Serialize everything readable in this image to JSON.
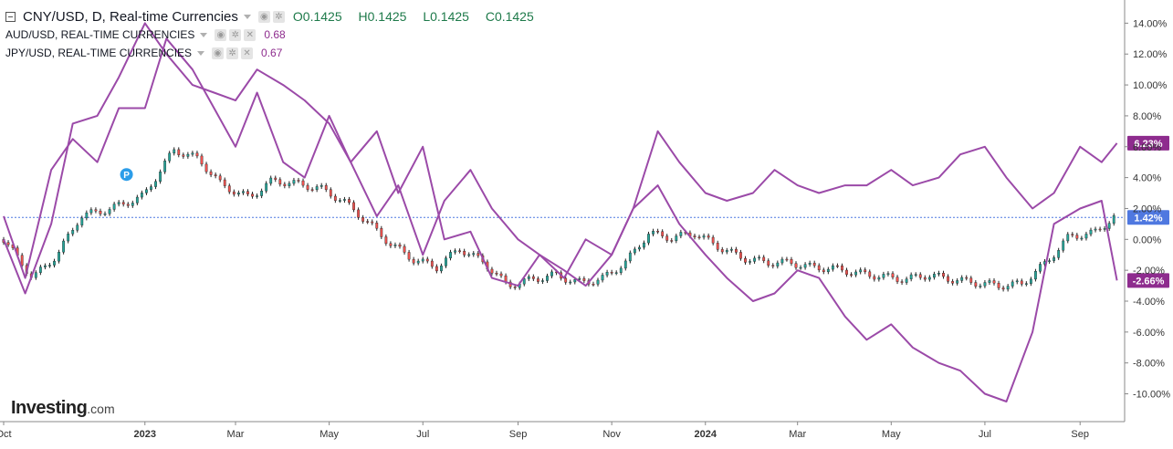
{
  "legend": {
    "main_title": "CNY/USD, D, Real-time Currencies",
    "open": "O0.1425",
    "high": "H0.1425",
    "low": "L0.1425",
    "close": "C0.1425",
    "aud_label": "AUD/USD, REAL-TIME CURRENCIES",
    "aud_value": "0.68",
    "jpy_label": "JPY/USD, REAL-TIME CURRENCIES",
    "jpy_value": "0.67"
  },
  "logo": {
    "brand": "Investing",
    "suffix": ".com"
  },
  "colors": {
    "up": "#26a69a",
    "down": "#ef5350",
    "compare": "#9b4aa8",
    "last_cny": "#4f78e0",
    "last_compare": "#8e2c8e",
    "grid": "#f0f3fa"
  },
  "chart_data": {
    "type": "line",
    "title": "CNY/USD, D, Real-time Currencies",
    "y_unit": "percent change",
    "ylim": [
      -11.8,
      15.5
    ],
    "y_ticks": [
      14,
      12,
      10,
      8,
      6,
      4,
      2,
      0,
      -2,
      -4,
      -6,
      -8,
      -10
    ],
    "y_tick_labels": [
      "14.00%",
      "12.00%",
      "10.00%",
      "8.00%",
      "6.00%",
      "4.00%",
      "2.00%",
      "0.00%",
      "-2.00%",
      "-4.00%",
      "-6.00%",
      "-8.00%",
      "-10.00%"
    ],
    "x_range": [
      "2022-10-01",
      "2024-09-30"
    ],
    "x_ticks": [
      {
        "date": "2022-10-01",
        "label": "Oct",
        "bold": false
      },
      {
        "date": "2023-01-01",
        "label": "2023",
        "bold": true
      },
      {
        "date": "2023-03-01",
        "label": "Mar",
        "bold": false
      },
      {
        "date": "2023-05-01",
        "label": "May",
        "bold": false
      },
      {
        "date": "2023-07-01",
        "label": "Jul",
        "bold": false
      },
      {
        "date": "2023-09-01",
        "label": "Sep",
        "bold": false
      },
      {
        "date": "2023-11-01",
        "label": "Nov",
        "bold": false
      },
      {
        "date": "2024-01-01",
        "label": "2024",
        "bold": true
      },
      {
        "date": "2024-03-01",
        "label": "Mar",
        "bold": false
      },
      {
        "date": "2024-05-01",
        "label": "May",
        "bold": false
      },
      {
        "date": "2024-07-01",
        "label": "Jul",
        "bold": false
      },
      {
        "date": "2024-09-01",
        "label": "Sep",
        "bold": false
      }
    ],
    "reference_line": {
      "value": 1.42,
      "label": "1.42%"
    },
    "last_value_badges": [
      {
        "series": "AUD/USD",
        "value": 6.23,
        "label": "6.23%"
      },
      {
        "series": "JPY/USD",
        "value": -2.66,
        "label": "-2.66%"
      }
    ],
    "series": [
      {
        "name": "CNY/USD",
        "style": "candlestick",
        "x": [
          "2022-10-01",
          "2022-10-20",
          "2022-11-05",
          "2022-11-20",
          "2022-12-10",
          "2022-12-31",
          "2023-01-20",
          "2023-02-05",
          "2023-02-20",
          "2023-03-10",
          "2023-03-25",
          "2023-04-10",
          "2023-04-25",
          "2023-05-10",
          "2023-05-25",
          "2023-06-10",
          "2023-06-25",
          "2023-07-10",
          "2023-07-25",
          "2023-08-10",
          "2023-08-25",
          "2023-09-10",
          "2023-09-25",
          "2023-10-10",
          "2023-10-25",
          "2023-11-10",
          "2023-11-25",
          "2023-12-10",
          "2023-12-25",
          "2024-01-10",
          "2024-01-25",
          "2024-02-10",
          "2024-02-25",
          "2024-03-10",
          "2024-03-25",
          "2024-04-10",
          "2024-04-25",
          "2024-05-10",
          "2024-05-25",
          "2024-06-10",
          "2024-06-25",
          "2024-07-10",
          "2024-07-25",
          "2024-08-10",
          "2024-08-25",
          "2024-09-10",
          "2024-09-23"
        ],
        "values": [
          0,
          -2.5,
          -1,
          1.5,
          2,
          2.8,
          5.8,
          5.2,
          3.5,
          2.7,
          3.8,
          3.6,
          3.3,
          2.5,
          1.2,
          -0.3,
          -1.3,
          -1.8,
          -0.6,
          -1.5,
          -3,
          -2.6,
          -2.3,
          -2.8,
          -2.6,
          -1.5,
          0.4,
          0.1,
          0.4,
          -0.5,
          -1.2,
          -1.5,
          -1.5,
          -1.8,
          -1.9,
          -2.2,
          -2.4,
          -2.6,
          -2.3,
          -2.6,
          -2.8,
          -3,
          -2.9,
          -1.5,
          0.2,
          0.4,
          1.42
        ]
      },
      {
        "name": "AUD/USD",
        "style": "line",
        "x": [
          "2022-10-01",
          "2022-10-15",
          "2022-11-01",
          "2022-11-15",
          "2022-12-01",
          "2022-12-15",
          "2023-01-01",
          "2023-01-15",
          "2023-02-01",
          "2023-02-15",
          "2023-03-01",
          "2023-03-15",
          "2023-04-01",
          "2023-04-15",
          "2023-05-01",
          "2023-05-15",
          "2023-06-01",
          "2023-06-15",
          "2023-07-01",
          "2023-07-15",
          "2023-08-01",
          "2023-08-15",
          "2023-09-01",
          "2023-09-15",
          "2023-10-01",
          "2023-10-15",
          "2023-11-01",
          "2023-11-15",
          "2023-12-01",
          "2023-12-15",
          "2024-01-01",
          "2024-01-15",
          "2024-02-01",
          "2024-02-15",
          "2024-03-01",
          "2024-03-15",
          "2024-04-01",
          "2024-04-15",
          "2024-05-01",
          "2024-05-15",
          "2024-06-01",
          "2024-06-15",
          "2024-07-01",
          "2024-07-15",
          "2024-08-01",
          "2024-08-15",
          "2024-09-01",
          "2024-09-15",
          "2024-09-25"
        ],
        "values": [
          1.5,
          -2.5,
          4.5,
          6.5,
          5,
          8.5,
          8.5,
          13,
          11,
          8.5,
          6,
          9.5,
          5,
          4,
          8,
          5,
          7,
          3,
          6,
          0,
          0.5,
          -2.5,
          -3,
          -1,
          -2.5,
          0,
          -1,
          2,
          7,
          5,
          3,
          2.5,
          3,
          4.5,
          3.5,
          3,
          3.5,
          3.5,
          4.5,
          3.5,
          4,
          5.5,
          6,
          4,
          2,
          3,
          6,
          5,
          6.23
        ]
      },
      {
        "name": "JPY/USD",
        "style": "line",
        "x": [
          "2022-10-01",
          "2022-10-15",
          "2022-11-01",
          "2022-11-15",
          "2022-12-01",
          "2022-12-15",
          "2023-01-01",
          "2023-01-15",
          "2023-02-01",
          "2023-02-15",
          "2023-03-01",
          "2023-03-15",
          "2023-04-01",
          "2023-04-15",
          "2023-05-01",
          "2023-05-15",
          "2023-06-01",
          "2023-06-15",
          "2023-07-01",
          "2023-07-15",
          "2023-08-01",
          "2023-08-15",
          "2023-09-01",
          "2023-09-15",
          "2023-10-01",
          "2023-10-15",
          "2023-11-01",
          "2023-11-15",
          "2023-12-01",
          "2023-12-15",
          "2024-01-01",
          "2024-01-15",
          "2024-02-01",
          "2024-02-15",
          "2024-03-01",
          "2024-03-15",
          "2024-04-01",
          "2024-04-15",
          "2024-05-01",
          "2024-05-15",
          "2024-06-01",
          "2024-06-15",
          "2024-07-01",
          "2024-07-15",
          "2024-08-01",
          "2024-08-15",
          "2024-09-01",
          "2024-09-15",
          "2024-09-25"
        ],
        "values": [
          0,
          -3.5,
          1,
          7.5,
          8,
          10.5,
          14,
          12,
          10,
          9.5,
          9,
          11,
          10,
          9,
          7.5,
          5,
          1.5,
          3.5,
          -1,
          2.5,
          4.5,
          2,
          0,
          -1,
          -2,
          -3,
          -1,
          2,
          3.5,
          1,
          -1,
          -2.5,
          -4,
          -3.5,
          -2,
          -2.5,
          -5,
          -6.5,
          -5.5,
          -7,
          -8,
          -8.5,
          -10,
          -10.5,
          -6,
          1,
          2,
          2.5,
          -2.66
        ]
      }
    ]
  }
}
